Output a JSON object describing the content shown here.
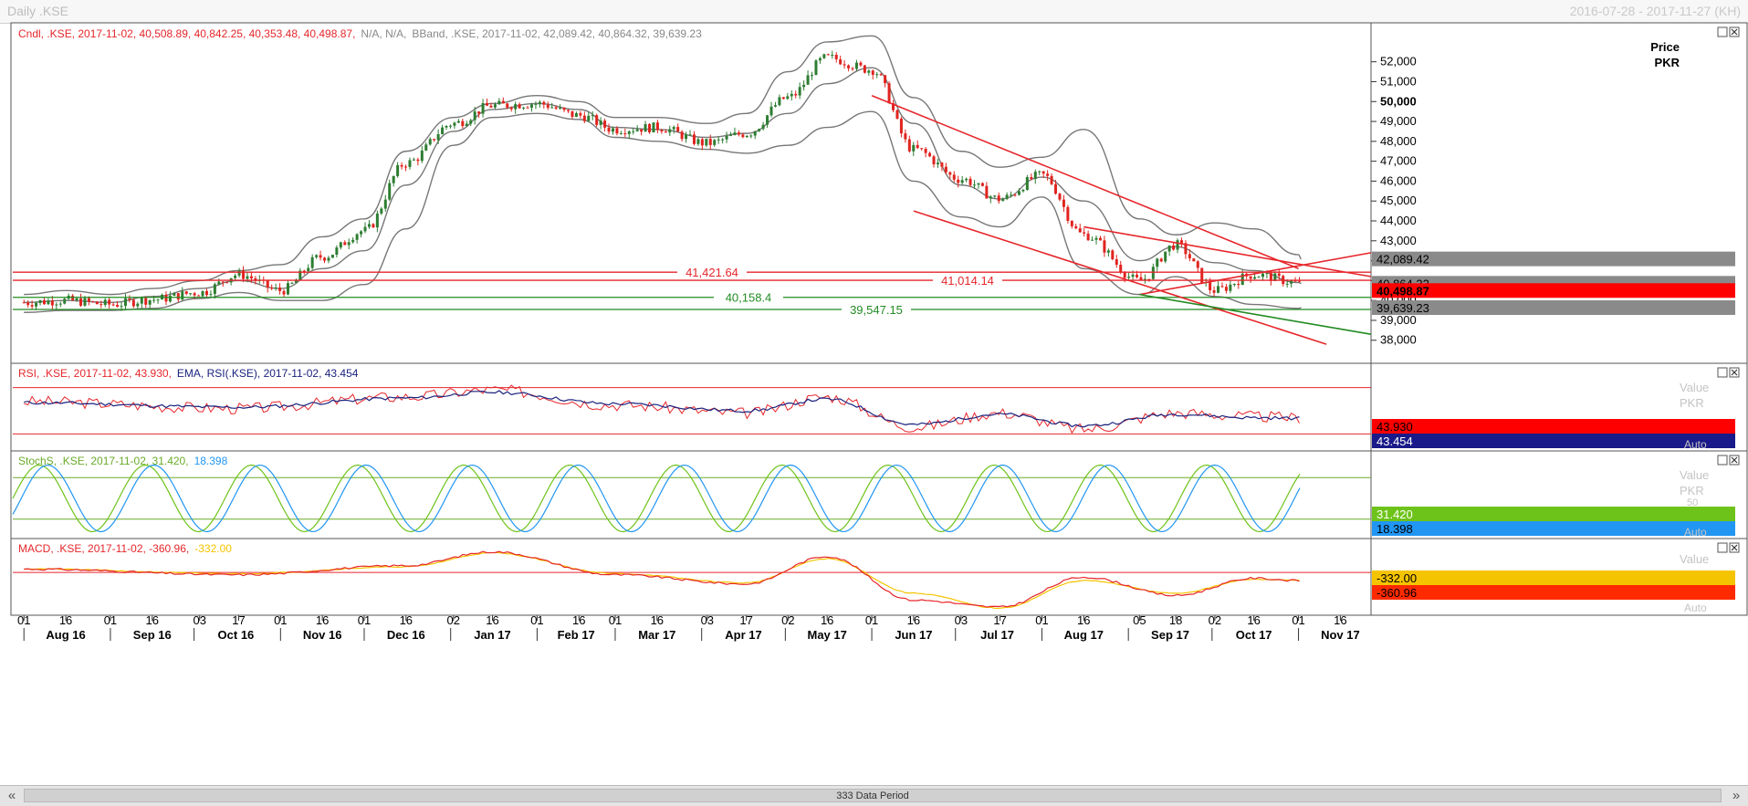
{
  "window": {
    "title": "Daily .KSE",
    "date_range": "2016-07-28 - 2017-11-27 (KH)"
  },
  "panels": {
    "price": {
      "legend": [
        {
          "text": "Cndl, .KSE, 2017-11-02, 40,508.89, 40,842.25, 40,353.48, 40,498.87,",
          "color": "#e6262b"
        },
        {
          "text": "N/A, N/A,",
          "color": "#888888"
        },
        {
          "text": "BBand, .KSE, 2017-11-02, 42,089.42, 40,864.32, 39,639.23",
          "color": "#888888"
        }
      ],
      "axis_title": "Price",
      "axis_unit": "PKR",
      "auto_label": "Auto"
    },
    "rsi": {
      "legend": [
        {
          "text": "RSI, .KSE, 2017-11-02, 43.930,",
          "color": "#e6262b"
        },
        {
          "text": "EMA, RSI(.KSE), 2017-11-02, 43.454",
          "color": "#1a237e"
        }
      ],
      "axis_labels": [
        "Value",
        "PKR"
      ],
      "auto_label": "Auto"
    },
    "stoch": {
      "legend": [
        {
          "text": "StochS, .KSE, 2017-11-02, 31.420,",
          "color": "#6aab2a"
        },
        {
          "text": "18.398",
          "color": "#2196f3"
        }
      ],
      "axis_labels": [
        "Value",
        "PKR",
        "50"
      ],
      "auto_label": "Auto"
    },
    "macd": {
      "legend": [
        {
          "text": "MACD, .KSE, 2017-11-02, -360.96,",
          "color": "#e6262b"
        },
        {
          "text": "-332.00",
          "color": "#f5c400"
        }
      ],
      "axis_labels": [
        "Value"
      ],
      "auto_label": "Auto"
    }
  },
  "hlines": [
    {
      "label": "41,421.64",
      "value": 41421.64,
      "color": "#e6262b"
    },
    {
      "label": "41,014.14",
      "value": 41014.14,
      "color": "#e6262b"
    },
    {
      "label": "40,158.4",
      "value": 40158.4,
      "color": "#228b22"
    },
    {
      "label": "39,547.15",
      "value": 39547.15,
      "color": "#228b22"
    }
  ],
  "axis_badges": {
    "price": [
      {
        "label": "42,089.42",
        "bg": "#8a8a8a",
        "fg": "#000000",
        "value": 42089.42
      },
      {
        "label": "40,864.32",
        "bg": "#8a8a8a",
        "fg": "#000000",
        "value": 40864.32
      },
      {
        "label": "40,498.87",
        "bg": "#ff0000",
        "fg": "#000000",
        "value": 40498.87
      },
      {
        "label": "39,639.23",
        "bg": "#8a8a8a",
        "fg": "#000000",
        "value": 39639.23
      }
    ],
    "rsi": [
      {
        "label": "43.930",
        "bg": "#ff0000",
        "fg": "#000000"
      },
      {
        "label": "43.454",
        "bg": "#1a1a8a",
        "fg": "#ffffff"
      }
    ],
    "stoch": [
      {
        "label": "31.420",
        "bg": "#6ec31a",
        "fg": "#ffffff"
      },
      {
        "label": "18.398",
        "bg": "#2196f3",
        "fg": "#000000"
      }
    ],
    "macd": [
      {
        "label": "-332.00",
        "bg": "#f5c400",
        "fg": "#000000"
      },
      {
        "label": "-360.96",
        "bg": "#ff2a00",
        "fg": "#000000"
      }
    ]
  },
  "x_axis": {
    "day_ticks": [
      "01",
      "16",
      "01",
      "16",
      "03",
      "17",
      "01",
      "16",
      "01",
      "16",
      "02",
      "16",
      "01",
      "16",
      "01",
      "16",
      "03",
      "17",
      "02",
      "16",
      "01",
      "16",
      "03",
      "17",
      "01",
      "16",
      "01",
      "16",
      "05",
      "18",
      "02",
      "16",
      "01",
      "16"
    ],
    "month_labels": [
      "Aug 16",
      "Sep 16",
      "Oct 16",
      "Nov 16",
      "Dec 16",
      "Jan 17",
      "Feb 17",
      "Mar 17",
      "Apr 17",
      "May 17",
      "Jun 17",
      "Jul 17",
      "Aug 17",
      "Sep 17",
      "Oct 17",
      "Nov 17"
    ]
  },
  "scrollbar": {
    "label": "333 Data Period"
  },
  "chart_data": [
    {
      "type": "candlestick",
      "title": "Cndl, .KSE",
      "ylabel": "Price PKR",
      "ylim": [
        37300,
        53500
      ],
      "y_ticks": [
        "38,000",
        "39,000",
        "40,000",
        "41,000",
        "42,000",
        "43,000",
        "44,000",
        "45,000",
        "46,000",
        "47,000",
        "48,000",
        "49,000",
        "50,000",
        "51,000",
        "52,000"
      ],
      "x": [
        "2016-08-01",
        "2016-08-16",
        "2016-09-01",
        "2016-09-16",
        "2016-10-03",
        "2016-10-17",
        "2016-11-01",
        "2016-11-16",
        "2016-12-01",
        "2016-12-16",
        "2017-01-02",
        "2017-01-16",
        "2017-02-01",
        "2017-02-16",
        "2017-03-01",
        "2017-03-16",
        "2017-04-03",
        "2017-04-17",
        "2017-05-02",
        "2017-05-16",
        "2017-06-01",
        "2017-06-16",
        "2017-07-03",
        "2017-07-17",
        "2017-08-01",
        "2017-08-16",
        "2017-09-05",
        "2017-09-18",
        "2017-10-02",
        "2017-10-16",
        "2017-11-01",
        "2017-11-02"
      ],
      "series": [
        {
          "name": "Cndl",
          "close": [
            39900,
            40000,
            39800,
            40050,
            40400,
            41300,
            40500,
            42200,
            43500,
            46900,
            48900,
            49800,
            49900,
            49300,
            48600,
            48700,
            47900,
            48400,
            50200,
            52200,
            51600,
            47600,
            46100,
            45100,
            46300,
            43300,
            41000,
            42800,
            40500,
            41300,
            40900,
            40498.87
          ]
        },
        {
          "name": "BBand upper",
          "values": [
            40300,
            40500,
            40300,
            40600,
            41000,
            41500,
            41800,
            43200,
            44100,
            47500,
            49200,
            49900,
            50300,
            50000,
            49200,
            49200,
            48900,
            49400,
            51500,
            53000,
            53300,
            50200,
            47500,
            46700,
            47200,
            48600,
            44100,
            43300,
            43900,
            43600,
            42300,
            42089.42
          ]
        },
        {
          "name": "BBand middle",
          "values": [
            39900,
            40000,
            39900,
            40200,
            40600,
            41000,
            40600,
            41600,
            42500,
            45800,
            48500,
            49600,
            49900,
            49600,
            48700,
            48600,
            48200,
            48400,
            49400,
            50900,
            51700,
            48900,
            45800,
            45100,
            46200,
            45000,
            42000,
            42700,
            41900,
            41500,
            40900,
            40864.32
          ]
        },
        {
          "name": "BBand lower",
          "values": [
            39400,
            39500,
            39500,
            39600,
            40100,
            40400,
            40000,
            40000,
            40800,
            43600,
            47800,
            49200,
            49400,
            49100,
            48200,
            48000,
            47600,
            47400,
            47800,
            48700,
            49500,
            46000,
            44200,
            43700,
            45200,
            41600,
            40300,
            41200,
            40200,
            39800,
            39600,
            39639.23
          ]
        }
      ]
    },
    {
      "type": "line",
      "title": "RSI, .KSE",
      "ylim": [
        20,
        80
      ],
      "x": [
        "2016-08-01",
        "2016-10-17",
        "2016-12-16",
        "2017-01-16",
        "2017-03-01",
        "2017-04-17",
        "2017-05-16",
        "2017-06-16",
        "2017-07-17",
        "2017-08-16",
        "2017-09-18",
        "2017-10-16",
        "2017-11-02"
      ],
      "series": [
        {
          "name": "RSI",
          "values": [
            58,
            52,
            62,
            68,
            55,
            48,
            62,
            36,
            48,
            34,
            48,
            45,
            43.93
          ]
        },
        {
          "name": "EMA",
          "values": [
            57,
            53,
            61,
            66,
            56,
            50,
            60,
            38,
            47,
            37,
            47,
            44,
            43.454
          ]
        }
      ]
    },
    {
      "type": "line",
      "title": "StochS, .KSE",
      "ylim": [
        0,
        100
      ],
      "series": [
        {
          "name": "StochS %K",
          "last": 31.42
        },
        {
          "name": "StochS %D",
          "last": 18.398
        }
      ]
    },
    {
      "type": "line",
      "title": "MACD, .KSE",
      "x": [
        "2016-08-01",
        "2016-10-17",
        "2016-12-16",
        "2017-01-16",
        "2017-03-01",
        "2017-04-17",
        "2017-05-16",
        "2017-06-16",
        "2017-07-17",
        "2017-08-16",
        "2017-09-18",
        "2017-10-16",
        "2017-11-02"
      ],
      "series": [
        {
          "name": "MACD",
          "values": [
            150,
            -100,
            300,
            900,
            -100,
            -500,
            700,
            -1200,
            -1500,
            -200,
            -1000,
            -250,
            -360.96
          ]
        },
        {
          "name": "Signal",
          "values": [
            160,
            -50,
            250,
            850,
            -50,
            -450,
            600,
            -900,
            -1550,
            -350,
            -900,
            -300,
            -332.0
          ]
        }
      ]
    }
  ]
}
